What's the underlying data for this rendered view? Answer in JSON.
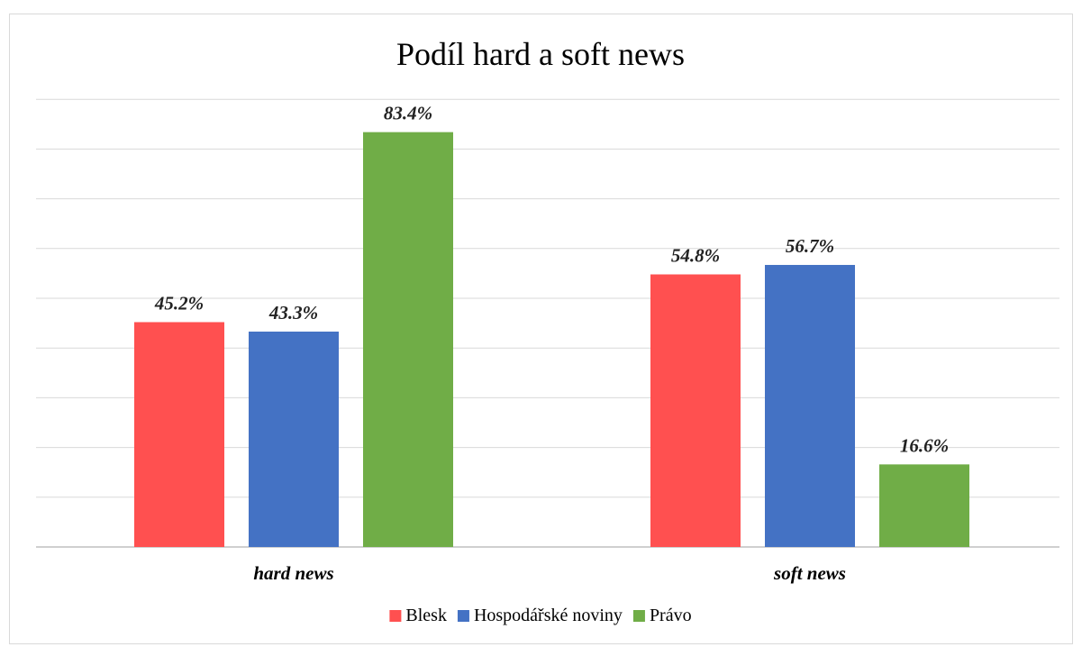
{
  "chart_data": {
    "type": "bar",
    "title": "Podíl hard a soft news",
    "categories": [
      "hard news",
      "soft news"
    ],
    "series": [
      {
        "name": "Blesk",
        "values": [
          45.2,
          54.8
        ],
        "labels": [
          "45.2%",
          "54.8%"
        ],
        "color": "#FF5050"
      },
      {
        "name": "Hospodářské noviny",
        "values": [
          43.3,
          56.7
        ],
        "labels": [
          "43.3%",
          "56.7%"
        ],
        "color": "#4472C4"
      },
      {
        "name": "Právo",
        "values": [
          83.4,
          16.6
        ],
        "labels": [
          "83.4%",
          "16.6%"
        ],
        "color": "#70AD47"
      }
    ],
    "xlabel": "",
    "ylabel": "",
    "ylim": [
      0,
      90
    ],
    "grid": true,
    "legend": "bottom",
    "value_unit": "%"
  }
}
